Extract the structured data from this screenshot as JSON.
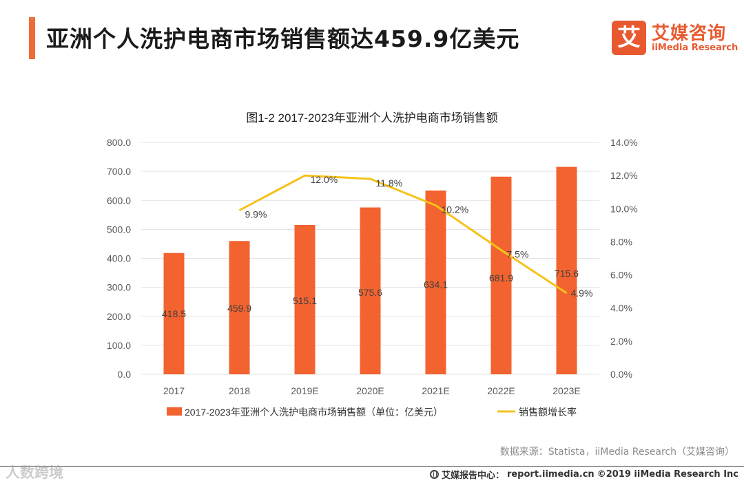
{
  "header": {
    "title": "亚洲个人洗护电商市场销售额达459.9亿美元",
    "logo_mark": "艾",
    "logo_cn": "艾媒咨询",
    "logo_en": "iiMedia Research"
  },
  "chart_data": {
    "type": "bar+line",
    "title": "图1-2 2017-2023年亚洲个人洗护电商市场销售额",
    "categories": [
      "2017",
      "2018",
      "2019E",
      "2020E",
      "2021E",
      "2022E",
      "2023E"
    ],
    "series": [
      {
        "name": "2017-2023年亚洲个人洗护电商市场销售额（单位：亿美元）",
        "type": "bar",
        "axis": "left",
        "values": [
          418.5,
          459.9,
          515.1,
          575.6,
          634.1,
          681.9,
          715.6
        ],
        "labels": [
          "418.5",
          "459.9",
          "515.1",
          "575.6",
          "634.1",
          "681.9",
          "715.6"
        ]
      },
      {
        "name": "销售额增长率",
        "type": "line",
        "axis": "right",
        "values": [
          null,
          9.9,
          12.0,
          11.8,
          10.2,
          7.5,
          4.9
        ],
        "labels": [
          "",
          "9.9%",
          "12.0%",
          "11.8%",
          "10.2%",
          "7.5%",
          "4.9%"
        ]
      }
    ],
    "y_left": {
      "min": 0,
      "max": 800,
      "ticks": [
        "0.0",
        "100.0",
        "200.0",
        "300.0",
        "400.0",
        "500.0",
        "600.0",
        "700.0",
        "800.0"
      ]
    },
    "y_right": {
      "min": 0,
      "max": 14,
      "ticks": [
        "0.0%",
        "2.0%",
        "4.0%",
        "6.0%",
        "8.0%",
        "10.0%",
        "12.0%",
        "14.0%"
      ]
    },
    "grid": true,
    "legend_position": "bottom",
    "colors": {
      "bar": "#f2632f",
      "line": "#f5c21b",
      "grid": "#e3e3e3",
      "tick": "#595959",
      "label": "#404040"
    }
  },
  "footer": {
    "source": "数据来源：Statista，iiMedia Research（艾媒咨询）",
    "watermark": "人数跨境",
    "center_label": "艾媒报告中心：",
    "site": "report.iimedia.cn",
    "copyright": "©2019  iiMedia Research  Inc",
    "icon": "globe-icon"
  }
}
